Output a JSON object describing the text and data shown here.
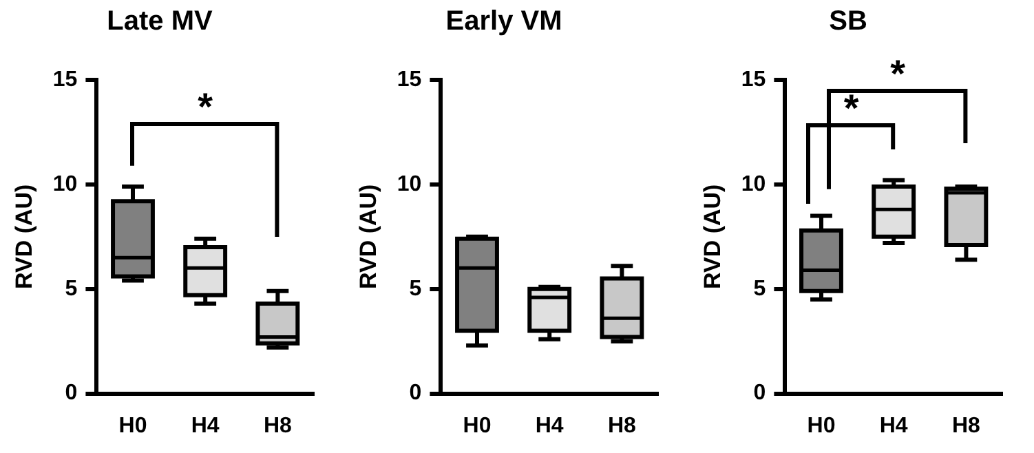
{
  "chart_data": [
    {
      "type": "box",
      "title": "Late MV",
      "ylabel": "RVD (AU)",
      "categories": [
        "H0",
        "H4",
        "H8"
      ],
      "colors": [
        "#808080",
        "#e0e0e0",
        "#c8c8c8"
      ],
      "ylim": [
        0,
        15
      ],
      "yticks": [
        0,
        5,
        10,
        15
      ],
      "grid": false,
      "annotations": [
        "*"
      ],
      "boxes": [
        {
          "low": 5.4,
          "q1": 5.6,
          "median": 6.5,
          "q3": 9.2,
          "high": 9.9
        },
        {
          "low": 4.3,
          "q1": 4.7,
          "median": 6.0,
          "q3": 7.0,
          "high": 7.4
        },
        {
          "low": 2.2,
          "q1": 2.4,
          "median": 2.7,
          "q3": 4.3,
          "high": 4.9
        }
      ]
    },
    {
      "type": "box",
      "title": "Early VM",
      "ylabel": "RVD (AU)",
      "categories": [
        "H0",
        "H4",
        "H8"
      ],
      "colors": [
        "#808080",
        "#e0e0e0",
        "#c8c8c8"
      ],
      "ylim": [
        0,
        15
      ],
      "yticks": [
        0,
        5,
        10,
        15
      ],
      "grid": false,
      "boxes": [
        {
          "low": 2.3,
          "q1": 3.0,
          "median": 6.0,
          "q3": 7.4,
          "high": 7.5
        },
        {
          "low": 2.6,
          "q1": 3.0,
          "median": 4.6,
          "q3": 5.0,
          "high": 5.1
        },
        {
          "low": 2.5,
          "q1": 2.7,
          "median": 3.6,
          "q3": 5.5,
          "high": 6.1
        }
      ]
    },
    {
      "type": "box",
      "title": "SB",
      "ylabel": "RVD (AU)",
      "categories": [
        "H0",
        "H4",
        "H8"
      ],
      "colors": [
        "#808080",
        "#e0e0e0",
        "#c8c8c8"
      ],
      "ylim": [
        0,
        15
      ],
      "yticks": [
        0,
        5,
        10,
        15
      ],
      "grid": false,
      "annotations": [
        "*",
        "*"
      ],
      "boxes": [
        {
          "low": 4.5,
          "q1": 4.9,
          "median": 5.9,
          "q3": 7.8,
          "high": 8.5
        },
        {
          "low": 7.2,
          "q1": 7.5,
          "median": 8.8,
          "q3": 9.9,
          "high": 10.2
        },
        {
          "low": 6.4,
          "q1": 7.1,
          "median": 9.6,
          "q3": 9.8,
          "high": 9.9
        }
      ]
    }
  ]
}
